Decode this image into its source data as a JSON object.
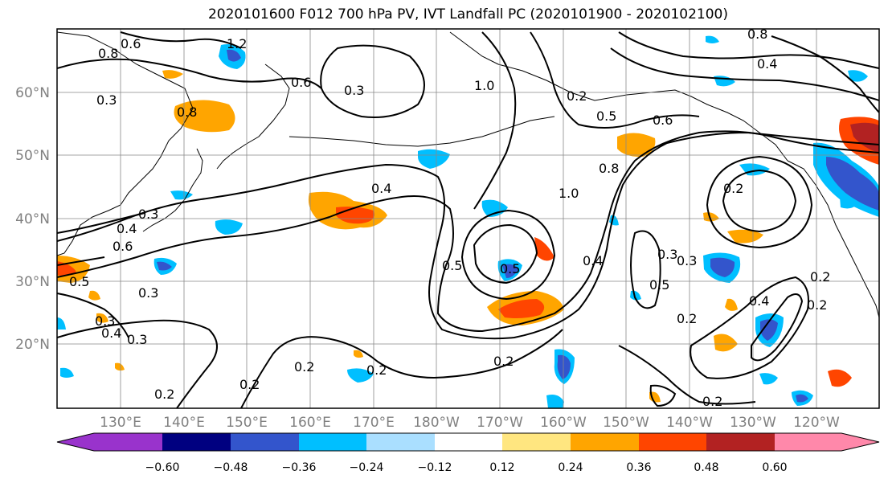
{
  "title": "2020101600 F012 700 hPa PV, IVT Landfall PC (2020101900 - 2020102100)",
  "map": {
    "lat_labels": [
      "60°N",
      "50°N",
      "40°N",
      "30°N",
      "20°N"
    ],
    "lon_labels": [
      "130°E",
      "140°E",
      "150°E",
      "160°E",
      "170°E",
      "180°W",
      "170°W",
      "160°W",
      "150°W",
      "140°W",
      "130°W",
      "120°W"
    ],
    "contour_labels": [
      "0.6",
      "1.2",
      "0.8",
      "0.3",
      "0.6",
      "0.3",
      "0.8",
      "1.0",
      "0.2",
      "0.5",
      "0.6",
      "0.8",
      "0.4",
      "1.0",
      "0.8",
      "0.2",
      "0.3",
      "0.4",
      "0.6",
      "0.5",
      "0.3",
      "0.4",
      "0.5",
      "0.4",
      "0.5",
      "0.3",
      "0.5",
      "0.2",
      "0.2",
      "0.3",
      "0.4",
      "0.2",
      "0.2",
      "0.2",
      "0.2",
      "0.2",
      "0.2",
      "0.2",
      "0.3",
      "0.4",
      "0.3"
    ]
  },
  "colorbar": {
    "tick_labels": [
      "−0.60",
      "−0.48",
      "−0.36",
      "−0.24",
      "−0.12",
      "0.12",
      "0.24",
      "0.36",
      "0.48",
      "0.60"
    ],
    "colors": [
      "#9933cc",
      "#000080",
      "#3355cc",
      "#00bfff",
      "#aadfff",
      "#ffffff",
      "#ffe680",
      "#ffa500",
      "#ff4500",
      "#b22222",
      "#ff88aa"
    ]
  }
}
